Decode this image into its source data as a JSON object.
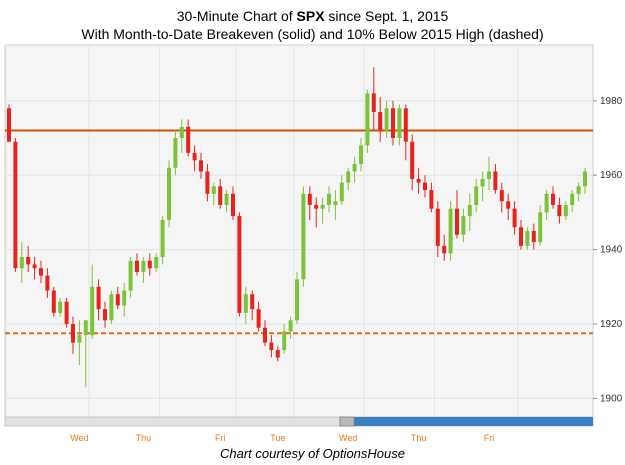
{
  "title_prefix": "30-Minute Chart of ",
  "title_symbol": "SPX",
  "title_suffix": " since Sept. 1, 2015",
  "subtitle": "With Month-to-Date Breakeven (solid) and 10% Below 2015 High (dashed)",
  "caption": "Chart courtesy of OptionsHouse",
  "colors": {
    "up": "#7cc33a",
    "down": "#e8221c",
    "breakeven": "#cc5500",
    "below_high": "#e06a10",
    "scrollbar": "#3a7fc0"
  },
  "chart_data": {
    "type": "candlestick",
    "ylim": [
      1895,
      1995
    ],
    "yticks": [
      1900,
      1920,
      1940,
      1960,
      1980
    ],
    "x_day_labels": [
      "Wed",
      "Thu",
      "Fri",
      "Tue",
      "Wed",
      "Thu",
      "Fri"
    ],
    "reference_lines": [
      {
        "label": "breakeven",
        "style": "solid",
        "value": 1972
      },
      {
        "label": "10% below 2015 high",
        "style": "dashed",
        "value": 1917.5
      }
    ],
    "candles": [
      [
        1978,
        1979,
        1969,
        1969
      ],
      [
        1969,
        1970,
        1934,
        1935
      ],
      [
        1935,
        1942,
        1931,
        1938
      ],
      [
        1938,
        1941,
        1934,
        1936
      ],
      [
        1936,
        1938,
        1932,
        1935
      ],
      [
        1935,
        1937,
        1931,
        1933
      ],
      [
        1933,
        1935,
        1927,
        1929
      ],
      [
        1929,
        1930,
        1922,
        1923
      ],
      [
        1923,
        1927,
        1922,
        1926
      ],
      [
        1926,
        1927,
        1919,
        1920
      ],
      [
        1920,
        1922,
        1912,
        1915
      ],
      [
        1915,
        1921,
        1909,
        1917
      ],
      [
        1917,
        1920,
        1903,
        1921
      ],
      [
        1917,
        1936,
        1916,
        1930
      ],
      [
        1930,
        1932,
        1921,
        1924
      ],
      [
        1924,
        1926,
        1919,
        1921
      ],
      [
        1921,
        1929,
        1920,
        1928
      ],
      [
        1928,
        1930,
        1924,
        1925
      ],
      [
        1925,
        1931,
        1922,
        1929
      ],
      [
        1929,
        1938,
        1927,
        1937
      ],
      [
        1937,
        1939,
        1933,
        1934
      ],
      [
        1934,
        1938,
        1931,
        1937
      ],
      [
        1937,
        1939,
        1933,
        1935
      ],
      [
        1935,
        1939,
        1934,
        1938
      ],
      [
        1938,
        1949,
        1936,
        1948
      ],
      [
        1948,
        1964,
        1946,
        1962
      ],
      [
        1962,
        1972,
        1960,
        1970
      ],
      [
        1970,
        1975,
        1966,
        1973
      ],
      [
        1973,
        1975,
        1965,
        1966
      ],
      [
        1966,
        1968,
        1961,
        1964
      ],
      [
        1964,
        1966,
        1959,
        1961
      ],
      [
        1961,
        1963,
        1953,
        1955
      ],
      [
        1955,
        1958,
        1952,
        1957
      ],
      [
        1957,
        1959,
        1951,
        1952
      ],
      [
        1952,
        1956,
        1950,
        1955
      ],
      [
        1955,
        1957,
        1948,
        1949
      ],
      [
        1949,
        1950,
        1922,
        1923
      ],
      [
        1923,
        1930,
        1920,
        1928
      ],
      [
        1928,
        1929,
        1921,
        1924
      ],
      [
        1924,
        1926,
        1918,
        1919
      ],
      [
        1919,
        1921,
        1914,
        1915
      ],
      [
        1915,
        1917,
        1911,
        1913
      ],
      [
        1913,
        1914,
        1910,
        1911
      ],
      [
        1913,
        1920,
        1912,
        1918
      ],
      [
        1918,
        1922,
        1916,
        1921
      ],
      [
        1921,
        1934,
        1920,
        1932
      ],
      [
        1932,
        1957,
        1930,
        1955
      ],
      [
        1955,
        1957,
        1948,
        1952
      ],
      [
        1952,
        1954,
        1946,
        1951
      ],
      [
        1951,
        1954,
        1947,
        1952
      ],
      [
        1952,
        1957,
        1950,
        1955
      ],
      [
        1952,
        1956,
        1948,
        1953
      ],
      [
        1953,
        1960,
        1952,
        1958
      ],
      [
        1958,
        1962,
        1956,
        1961
      ],
      [
        1961,
        1965,
        1958,
        1963
      ],
      [
        1963,
        1970,
        1961,
        1968
      ],
      [
        1968,
        1983,
        1966,
        1982
      ],
      [
        1982,
        1989,
        1972,
        1977
      ],
      [
        1977,
        1981,
        1969,
        1972
      ],
      [
        1972,
        1980,
        1970,
        1978
      ],
      [
        1978,
        1980,
        1968,
        1970
      ],
      [
        1970,
        1979,
        1968,
        1978
      ],
      [
        1978,
        1979,
        1964,
        1969
      ],
      [
        1969,
        1971,
        1956,
        1959
      ],
      [
        1959,
        1962,
        1955,
        1958
      ],
      [
        1958,
        1960,
        1954,
        1956
      ],
      [
        1956,
        1958,
        1950,
        1951
      ],
      [
        1951,
        1953,
        1938,
        1941
      ],
      [
        1941,
        1944,
        1937,
        1939
      ],
      [
        1939,
        1953,
        1937,
        1951
      ],
      [
        1951,
        1956,
        1943,
        1944
      ],
      [
        1944,
        1951,
        1942,
        1949
      ],
      [
        1949,
        1955,
        1945,
        1952
      ],
      [
        1952,
        1959,
        1950,
        1957
      ],
      [
        1957,
        1961,
        1953,
        1959
      ],
      [
        1959,
        1965,
        1956,
        1961
      ],
      [
        1961,
        1963,
        1955,
        1956
      ],
      [
        1956,
        1958,
        1950,
        1953
      ],
      [
        1953,
        1955,
        1948,
        1951
      ],
      [
        1951,
        1953,
        1944,
        1946
      ],
      [
        1946,
        1948,
        1940,
        1941
      ],
      [
        1941,
        1946,
        1940,
        1945
      ],
      [
        1945,
        1947,
        1940,
        1942
      ],
      [
        1942,
        1952,
        1941,
        1950
      ],
      [
        1950,
        1956,
        1948,
        1955
      ],
      [
        1955,
        1957,
        1951,
        1952
      ],
      [
        1952,
        1954,
        1947,
        1949
      ],
      [
        1949,
        1953,
        1948,
        1952
      ],
      [
        1952,
        1956,
        1950,
        1955
      ],
      [
        1955,
        1958,
        1953,
        1957
      ],
      [
        1957,
        1962,
        1955,
        1961
      ]
    ]
  }
}
